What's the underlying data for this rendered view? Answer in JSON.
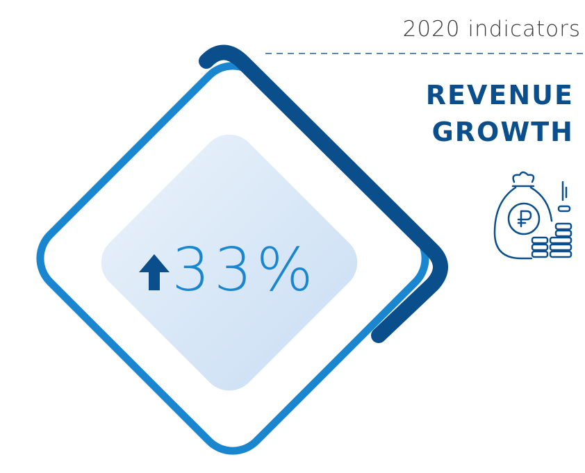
{
  "header": {
    "subtitle": "2020 indicators"
  },
  "indicator": {
    "title_lines": [
      "REVENUE",
      "GROWTH"
    ],
    "value": "33%"
  }
}
